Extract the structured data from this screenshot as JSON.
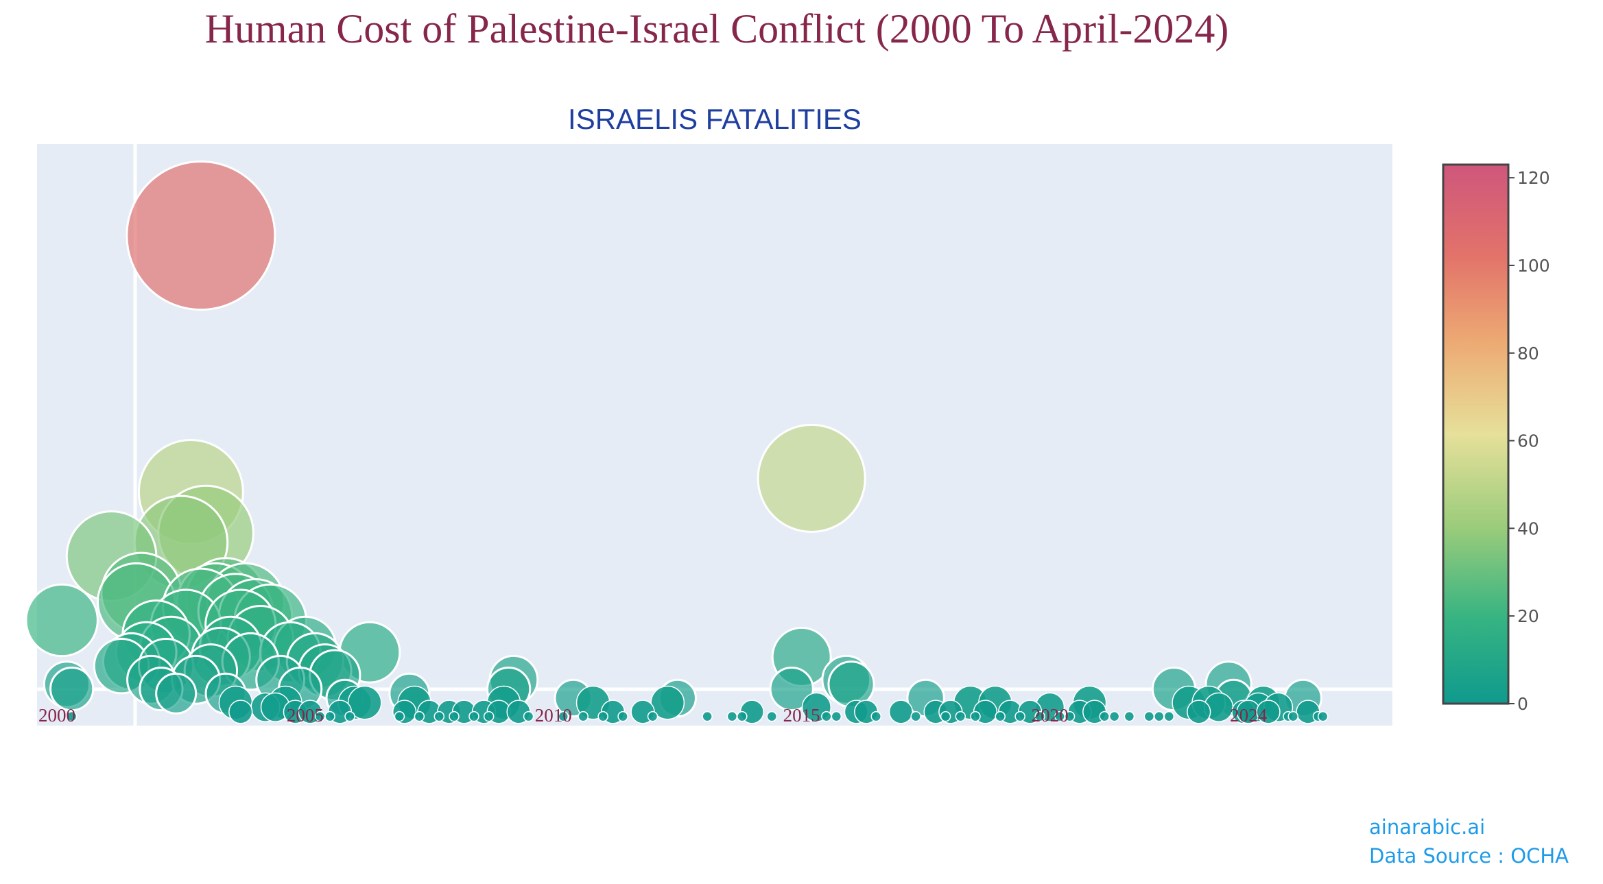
{
  "title": "Human Cost of Palestine-Israel Conflict (2000 To April-2024)",
  "subtitle": "ISRAELIS FATALITIES",
  "credit": {
    "site": "ainarabic.ai",
    "source": "Data Source : OCHA"
  },
  "chart_data": {
    "type": "scatter",
    "xlim": [
      1999.6,
      2026.9
    ],
    "ylim": [
      -2,
      125
    ],
    "x_ticks": [
      2000,
      2005,
      2010,
      2015,
      2020,
      2024
    ],
    "colorbar": {
      "ticks": [
        0,
        20,
        40,
        60,
        80,
        100,
        120
      ],
      "min": 0,
      "max": 123
    },
    "colorscale": [
      "#0f9a8e",
      "#37b482",
      "#9ccc7b",
      "#e6e09a",
      "#edaa73",
      "#e2736a",
      "#cf567c"
    ],
    "grid": false,
    "legend": "none",
    "points": [
      [
        2000.1,
        21
      ],
      [
        2000.2,
        7
      ],
      [
        2000.3,
        6
      ],
      [
        2000.3,
        0
      ],
      [
        2001.1,
        35
      ],
      [
        2001.3,
        11
      ],
      [
        2001.5,
        12
      ],
      [
        2001.6,
        25
      ],
      [
        2001.7,
        27
      ],
      [
        2001.8,
        14
      ],
      [
        2001.9,
        8
      ],
      [
        2002.0,
        18
      ],
      [
        2002.1,
        6
      ],
      [
        2002.2,
        11
      ],
      [
        2002.3,
        15
      ],
      [
        2002.4,
        5
      ],
      [
        2002.5,
        38
      ],
      [
        2002.6,
        20
      ],
      [
        2002.7,
        49
      ],
      [
        2002.8,
        8
      ],
      [
        2002.9,
        24
      ],
      [
        2002.9,
        105
      ],
      [
        2003.0,
        40
      ],
      [
        2003.1,
        10
      ],
      [
        2003.2,
        25
      ],
      [
        2003.3,
        13
      ],
      [
        2003.4,
        26
      ],
      [
        2003.5,
        15
      ],
      [
        2003.6,
        23
      ],
      [
        2003.7,
        20
      ],
      [
        2003.8,
        25
      ],
      [
        2003.9,
        12
      ],
      [
        2004.0,
        22
      ],
      [
        2004.1,
        17
      ],
      [
        2004.3,
        21
      ],
      [
        2004.5,
        8
      ],
      [
        2004.7,
        14
      ],
      [
        2004.9,
        6
      ],
      [
        2005.0,
        15
      ],
      [
        2005.2,
        12
      ],
      [
        2005.4,
        10
      ],
      [
        2005.6,
        9
      ],
      [
        2005.8,
        4
      ],
      [
        2006.0,
        3
      ],
      [
        2006.2,
        3
      ],
      [
        2006.3,
        14
      ],
      [
        2003.4,
        5
      ],
      [
        2003.6,
        3
      ],
      [
        2003.7,
        1
      ],
      [
        2004.2,
        2
      ],
      [
        2004.4,
        2
      ],
      [
        2004.6,
        3
      ],
      [
        2004.8,
        1
      ],
      [
        2005.1,
        1
      ],
      [
        2005.3,
        0
      ],
      [
        2005.5,
        0
      ],
      [
        2005.7,
        1
      ],
      [
        2005.9,
        0
      ],
      [
        2006.9,
        0
      ],
      [
        2007.0,
        1
      ],
      [
        2007.1,
        5
      ],
      [
        2007.2,
        3
      ],
      [
        2007.3,
        0
      ],
      [
        2007.5,
        1
      ],
      [
        2007.7,
        0
      ],
      [
        2007.9,
        1
      ],
      [
        2008.0,
        0
      ],
      [
        2008.2,
        1
      ],
      [
        2008.4,
        0
      ],
      [
        2008.6,
        1
      ],
      [
        2008.7,
        0
      ],
      [
        2008.9,
        1
      ],
      [
        2009.0,
        3
      ],
      [
        2009.1,
        6
      ],
      [
        2009.2,
        8
      ],
      [
        2009.3,
        1
      ],
      [
        2009.5,
        0
      ],
      [
        2010.2,
        0
      ],
      [
        2010.4,
        4
      ],
      [
        2010.6,
        0
      ],
      [
        2010.8,
        3
      ],
      [
        2011.0,
        0
      ],
      [
        2011.2,
        1
      ],
      [
        2011.4,
        0
      ],
      [
        2011.8,
        1
      ],
      [
        2012.0,
        0
      ],
      [
        2012.3,
        3
      ],
      [
        2012.5,
        4
      ],
      [
        2013.1,
        0
      ],
      [
        2013.6,
        0
      ],
      [
        2013.8,
        0
      ],
      [
        2014.0,
        1
      ],
      [
        2014.4,
        0
      ],
      [
        2014.8,
        6
      ],
      [
        2015.0,
        13
      ],
      [
        2015.2,
        52
      ],
      [
        2015.3,
        2
      ],
      [
        2015.5,
        0
      ],
      [
        2015.7,
        0
      ],
      [
        2015.9,
        8
      ],
      [
        2016.0,
        7
      ],
      [
        2016.1,
        1
      ],
      [
        2016.3,
        1
      ],
      [
        2016.5,
        0
      ],
      [
        2017.0,
        1
      ],
      [
        2017.3,
        0
      ],
      [
        2017.5,
        4
      ],
      [
        2017.7,
        1
      ],
      [
        2017.9,
        0
      ],
      [
        2018.0,
        1
      ],
      [
        2018.2,
        0
      ],
      [
        2018.4,
        3
      ],
      [
        2018.5,
        0
      ],
      [
        2018.7,
        1
      ],
      [
        2018.9,
        3
      ],
      [
        2019.0,
        0
      ],
      [
        2019.2,
        1
      ],
      [
        2019.4,
        0
      ],
      [
        2019.6,
        1
      ],
      [
        2019.8,
        0
      ],
      [
        2020.0,
        2
      ],
      [
        2020.2,
        0
      ],
      [
        2020.4,
        0
      ],
      [
        2020.6,
        1
      ],
      [
        2020.8,
        3
      ],
      [
        2020.9,
        1
      ],
      [
        2021.1,
        0
      ],
      [
        2021.3,
        0
      ],
      [
        2021.6,
        0
      ],
      [
        2022.0,
        0
      ],
      [
        2022.2,
        0
      ],
      [
        2022.4,
        0
      ],
      [
        2022.5,
        6
      ],
      [
        2022.8,
        3
      ],
      [
        2023.0,
        1
      ],
      [
        2023.2,
        3
      ],
      [
        2023.4,
        2
      ],
      [
        2023.6,
        7
      ],
      [
        2023.7,
        4
      ],
      [
        2023.9,
        1
      ],
      [
        2024.0,
        1
      ],
      [
        2024.2,
        2
      ],
      [
        2024.3,
        3
      ],
      [
        2024.4,
        1
      ],
      [
        2024.6,
        2
      ],
      [
        2024.8,
        0
      ],
      [
        2024.9,
        0
      ],
      [
        2025.1,
        4
      ],
      [
        2025.2,
        1
      ],
      [
        2025.4,
        0
      ],
      [
        2025.5,
        0
      ]
    ]
  }
}
